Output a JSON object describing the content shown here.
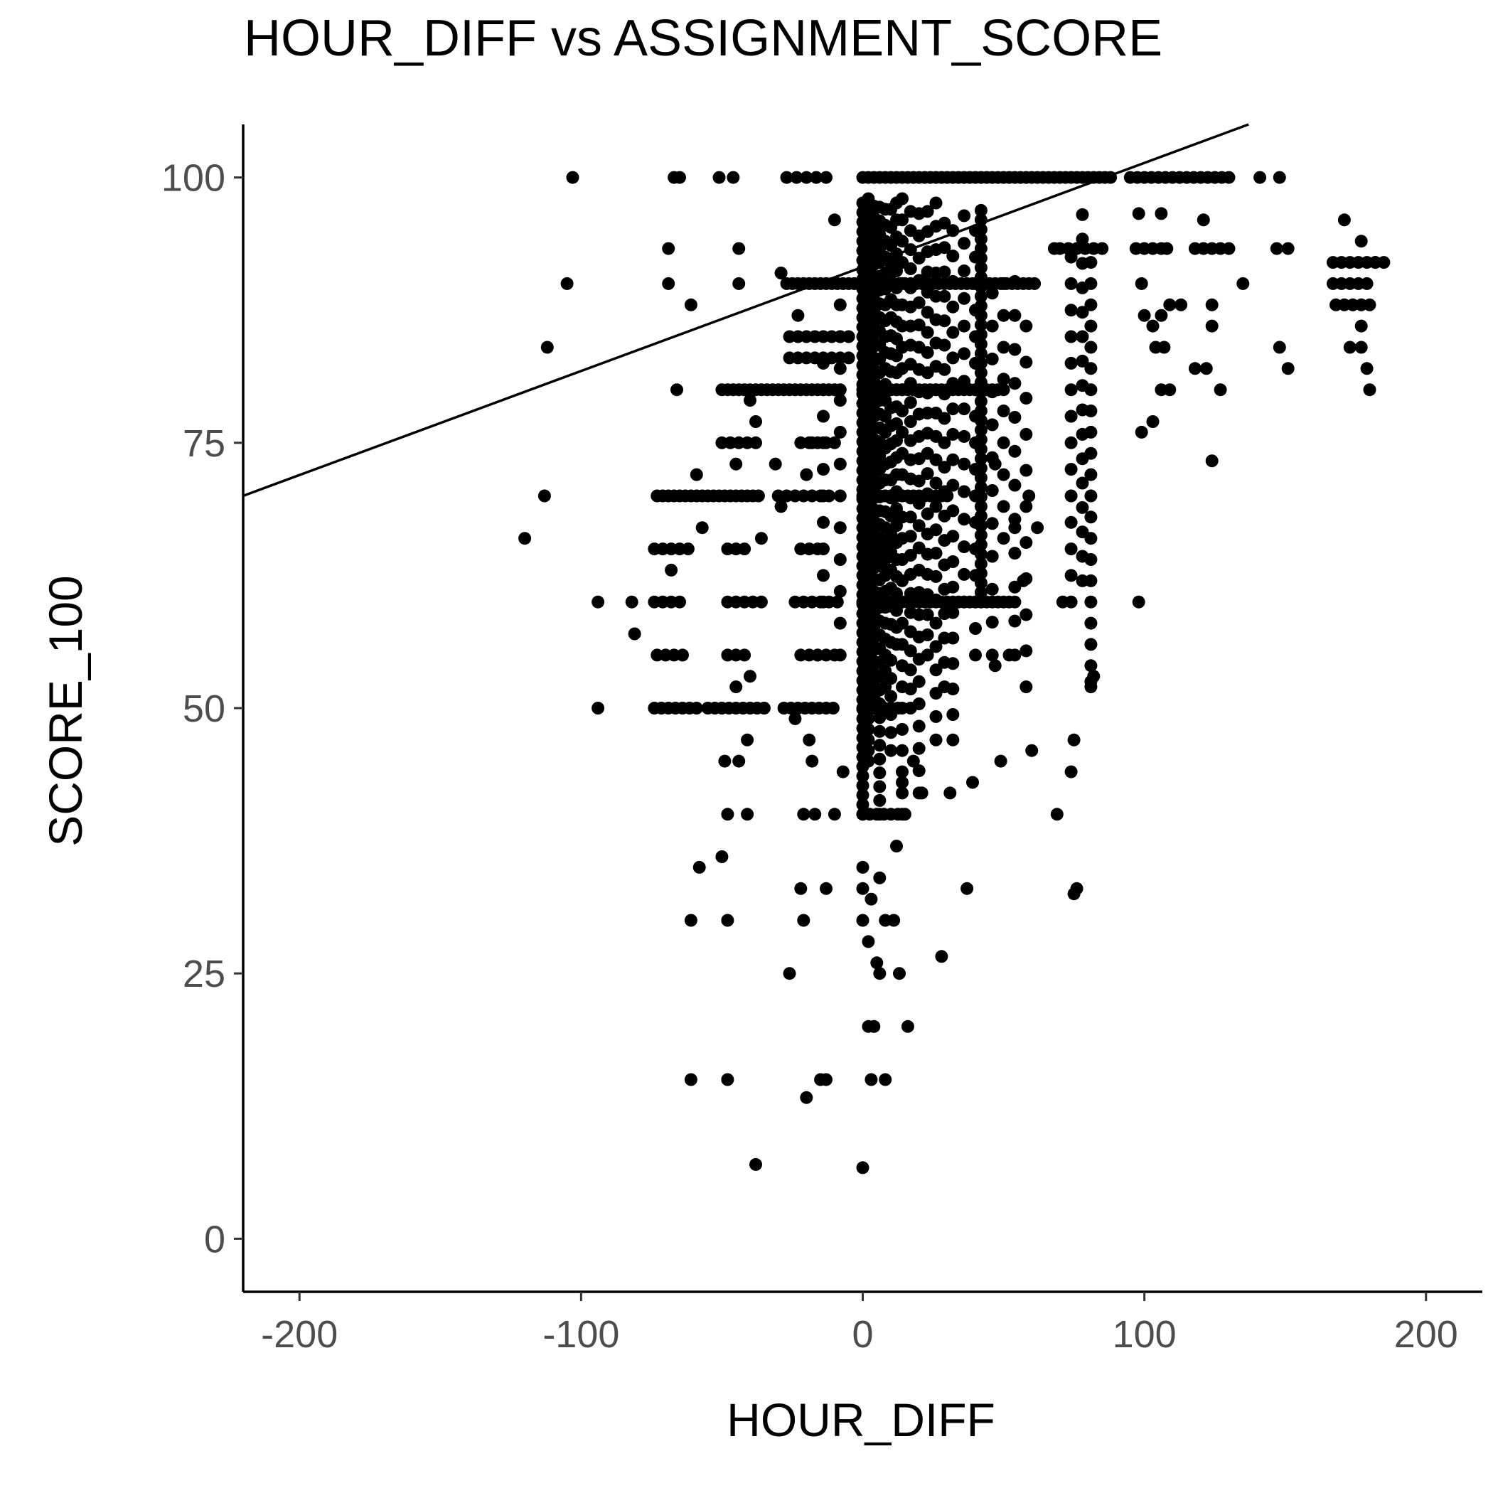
{
  "chart_data": {
    "type": "scatter",
    "title": "HOUR_DIFF vs ASSIGNMENT_SCORE",
    "xlabel": "HOUR_DIFF",
    "ylabel": "SCORE_100",
    "xlim": [
      -220,
      220
    ],
    "ylim": [
      -5,
      105
    ],
    "xticks": [
      "-200",
      "-100",
      "0",
      "100",
      "200"
    ],
    "yticks": [
      "0",
      "25",
      "50",
      "75",
      "100"
    ],
    "grid": false,
    "legend": "none",
    "point_color": "#000000",
    "line_color": "#000000",
    "trend_line": {
      "x1": -220,
      "y1": 70,
      "x2": 137,
      "y2": 105
    },
    "point_runs": [
      {
        "y": 100,
        "x0": 0,
        "x1": 88,
        "step": 2
      },
      {
        "y": 100,
        "x0": 95,
        "x1": 132,
        "step": 2.5
      },
      {
        "y": 100,
        "x0": -27,
        "x1": -12,
        "step": 3.5
      },
      {
        "y": 90,
        "x0": -27,
        "x1": 62,
        "step": 2
      },
      {
        "y": 80,
        "x0": -50,
        "x1": -8,
        "step": 2
      },
      {
        "y": 80,
        "x0": 0,
        "x1": 50,
        "step": 2
      },
      {
        "y": 70,
        "x0": -73,
        "x1": -36,
        "step": 2
      },
      {
        "y": 70,
        "x0": -30,
        "x1": -10,
        "step": 3
      },
      {
        "y": 70,
        "x0": 0,
        "x1": 30,
        "step": 2
      },
      {
        "y": 60,
        "x0": -74,
        "x1": -65,
        "step": 3
      },
      {
        "y": 60,
        "x0": -48,
        "x1": -34,
        "step": 3
      },
      {
        "y": 60,
        "x0": -24,
        "x1": -9,
        "step": 3
      },
      {
        "y": 60,
        "x0": 0,
        "x1": 55,
        "step": 2
      },
      {
        "y": 50,
        "x0": -74,
        "x1": -59,
        "step": 2.5
      },
      {
        "y": 50,
        "x0": -55,
        "x1": -34,
        "step": 2.5
      },
      {
        "y": 50,
        "x0": -28,
        "x1": -9,
        "step": 2.5
      },
      {
        "y": 50,
        "x0": 0,
        "x1": 14,
        "step": 2.5
      },
      {
        "y": 93.3,
        "x0": 70,
        "x1": 86,
        "step": 3
      },
      {
        "y": 93.3,
        "x0": 97,
        "x1": 108,
        "step": 3
      },
      {
        "y": 93.3,
        "x0": 118,
        "x1": 132,
        "step": 3
      },
      {
        "y": 85,
        "x0": -26,
        "x1": -4,
        "step": 3
      },
      {
        "y": 83,
        "x0": -26,
        "x1": -4,
        "step": 3
      },
      {
        "y": 75,
        "x0": -50,
        "x1": -36,
        "step": 3
      },
      {
        "y": 75,
        "x0": -22,
        "x1": -8,
        "step": 3
      },
      {
        "y": 65,
        "x0": -74,
        "x1": -65,
        "step": 3
      },
      {
        "y": 65,
        "x0": -48,
        "x1": -40,
        "step": 3
      },
      {
        "y": 65,
        "x0": -22,
        "x1": -16,
        "step": 3
      },
      {
        "y": 55,
        "x0": -73,
        "x1": -63,
        "step": 3
      },
      {
        "y": 55,
        "x0": -48,
        "x1": -40,
        "step": 3
      },
      {
        "y": 55,
        "x0": -22,
        "x1": -10,
        "step": 3
      },
      {
        "y": 40,
        "x0": 0,
        "x1": 16,
        "step": 2.5
      },
      {
        "y": 92,
        "x0": 167,
        "x1": 182,
        "step": 3
      },
      {
        "y": 90,
        "x0": 167,
        "x1": 180,
        "step": 3
      },
      {
        "y": 88,
        "x0": 168,
        "x1": 180,
        "step": 3
      }
    ],
    "point_columns": [
      {
        "x": 0,
        "y0": 40,
        "y1": 98,
        "step": 0.9
      },
      {
        "x": 2,
        "y0": 45,
        "y1": 98,
        "step": 1
      },
      {
        "x": 4,
        "y0": 50,
        "y1": 98,
        "step": 1.1
      },
      {
        "x": 6,
        "y0": 40,
        "y1": 98,
        "step": 1.3
      },
      {
        "x": 8,
        "y0": 52,
        "y1": 98,
        "step": 1.5
      },
      {
        "x": 10,
        "y0": 46,
        "y1": 98,
        "step": 1.7
      },
      {
        "x": 12,
        "y0": 56,
        "y1": 98,
        "step": 1.6
      },
      {
        "x": 14,
        "y0": 40,
        "y1": 98,
        "step": 2
      },
      {
        "x": 17,
        "y0": 50,
        "y1": 98,
        "step": 1.8
      },
      {
        "x": 20,
        "y0": 42,
        "y1": 98,
        "step": 2.1
      },
      {
        "x": 23,
        "y0": 55,
        "y1": 98,
        "step": 1.9
      },
      {
        "x": 26,
        "y0": 47,
        "y1": 98,
        "step": 2.2
      },
      {
        "x": 29,
        "y0": 52,
        "y1": 97,
        "step": 2.3
      },
      {
        "x": 32,
        "y0": 47,
        "y1": 97,
        "step": 2.4
      },
      {
        "x": 36,
        "y0": 60,
        "y1": 97,
        "step": 2.6
      },
      {
        "x": 40,
        "y0": 55,
        "y1": 97,
        "step": 2.5
      },
      {
        "x": 42,
        "y0": 60,
        "y1": 97,
        "step": 0.9
      },
      {
        "x": 46,
        "y0": 55,
        "y1": 92,
        "step": 3.1
      },
      {
        "x": 50,
        "y0": 66,
        "y1": 92,
        "step": 3
      },
      {
        "x": 54,
        "y0": 55,
        "y1": 91,
        "step": 3.2
      },
      {
        "x": 58,
        "y0": 52,
        "y1": 89,
        "step": 3.4
      },
      {
        "x": 74,
        "y0": 60,
        "y1": 93,
        "step": 2.5
      },
      {
        "x": 78,
        "y0": 62,
        "y1": 97,
        "step": 2.3
      },
      {
        "x": 81,
        "y0": 52,
        "y1": 92,
        "step": 2
      },
      {
        "x": -8,
        "y0": 55,
        "y1": 90,
        "step": 3
      },
      {
        "x": -14,
        "y0": 60,
        "y1": 84,
        "step": 2.5
      }
    ],
    "points": [
      [
        -103,
        100
      ],
      [
        -105,
        90
      ],
      [
        -112,
        84
      ],
      [
        -113,
        70
      ],
      [
        -120,
        66
      ],
      [
        -94,
        60
      ],
      [
        -94,
        50
      ],
      [
        -82,
        60
      ],
      [
        -81,
        57
      ],
      [
        -67,
        100
      ],
      [
        -65,
        100
      ],
      [
        -69,
        93.3
      ],
      [
        -69,
        90
      ],
      [
        -61,
        88
      ],
      [
        -51,
        100
      ],
      [
        -46,
        100
      ],
      [
        -44,
        93.3
      ],
      [
        -44,
        90
      ],
      [
        -66,
        80
      ],
      [
        -59,
        72
      ],
      [
        -57,
        67
      ],
      [
        -68,
        63
      ],
      [
        -62,
        65
      ],
      [
        -45,
        73
      ],
      [
        -36,
        66
      ],
      [
        -40,
        53
      ],
      [
        -45,
        52
      ],
      [
        -41,
        47
      ],
      [
        -44,
        45
      ],
      [
        -49,
        45
      ],
      [
        -48,
        40
      ],
      [
        -41,
        40
      ],
      [
        -50,
        36
      ],
      [
        -58,
        35
      ],
      [
        -61,
        30
      ],
      [
        -48,
        30
      ],
      [
        -61,
        15
      ],
      [
        -48,
        15
      ],
      [
        -38,
        7
      ],
      [
        -40,
        79
      ],
      [
        -38,
        77
      ],
      [
        -31,
        73
      ],
      [
        -29,
        69
      ],
      [
        -20,
        72
      ],
      [
        -18,
        75
      ],
      [
        -24,
        49
      ],
      [
        -16,
        55
      ],
      [
        -19,
        47
      ],
      [
        -18,
        45
      ],
      [
        -21,
        40
      ],
      [
        -17,
        40
      ],
      [
        -10,
        40
      ],
      [
        -22,
        33
      ],
      [
        -13,
        33
      ],
      [
        -21,
        30
      ],
      [
        -26,
        25
      ],
      [
        -15,
        15
      ],
      [
        -13,
        15
      ],
      [
        -20,
        13.3
      ],
      [
        -7,
        44
      ],
      [
        -10,
        96
      ],
      [
        -29,
        91
      ],
      [
        -23,
        87
      ],
      [
        0,
        35
      ],
      [
        0,
        33
      ],
      [
        0,
        30
      ],
      [
        2,
        28
      ],
      [
        3,
        32
      ],
      [
        5,
        26
      ],
      [
        6,
        34
      ],
      [
        8,
        30
      ],
      [
        11,
        30
      ],
      [
        6,
        25
      ],
      [
        4,
        20
      ],
      [
        2,
        20
      ],
      [
        13,
        25
      ],
      [
        16,
        20
      ],
      [
        3,
        15
      ],
      [
        8,
        15
      ],
      [
        0,
        6.7
      ],
      [
        12,
        37
      ],
      [
        14,
        43
      ],
      [
        18,
        45
      ],
      [
        21,
        42
      ],
      [
        28,
        26.6
      ],
      [
        37,
        33
      ],
      [
        31,
        42
      ],
      [
        39,
        43
      ],
      [
        49,
        45
      ],
      [
        60,
        46
      ],
      [
        69,
        40
      ],
      [
        74,
        44
      ],
      [
        75,
        47
      ],
      [
        75,
        32.5
      ],
      [
        76,
        33
      ],
      [
        81,
        52.5
      ],
      [
        82,
        53
      ],
      [
        71,
        60
      ],
      [
        68,
        93.3
      ],
      [
        98,
        60
      ],
      [
        99,
        76
      ],
      [
        103,
        77
      ],
      [
        106,
        80
      ],
      [
        109,
        80
      ],
      [
        107,
        84
      ],
      [
        104,
        84
      ],
      [
        109,
        88
      ],
      [
        113,
        88
      ],
      [
        100,
        87
      ],
      [
        103,
        86
      ],
      [
        106,
        87
      ],
      [
        106,
        96.6
      ],
      [
        98,
        96.6
      ],
      [
        99,
        90
      ],
      [
        108,
        93.3
      ],
      [
        121,
        96
      ],
      [
        118,
        82
      ],
      [
        122,
        82
      ],
      [
        124,
        73.3
      ],
      [
        127,
        80
      ],
      [
        124,
        86
      ],
      [
        124,
        88
      ],
      [
        135,
        90
      ],
      [
        141,
        100
      ],
      [
        148,
        100
      ],
      [
        148,
        84
      ],
      [
        151,
        82
      ],
      [
        151,
        93.3
      ],
      [
        147,
        93.3
      ],
      [
        171,
        96
      ],
      [
        173,
        84
      ],
      [
        177,
        84
      ],
      [
        177,
        94
      ],
      [
        177,
        86
      ],
      [
        179,
        82
      ],
      [
        180,
        80
      ],
      [
        185,
        92
      ],
      [
        182,
        92
      ],
      [
        47,
        73
      ],
      [
        57,
        62
      ],
      [
        59,
        70
      ],
      [
        62,
        67
      ],
      [
        54,
        67
      ],
      [
        47,
        54
      ],
      [
        52,
        55
      ]
    ]
  }
}
